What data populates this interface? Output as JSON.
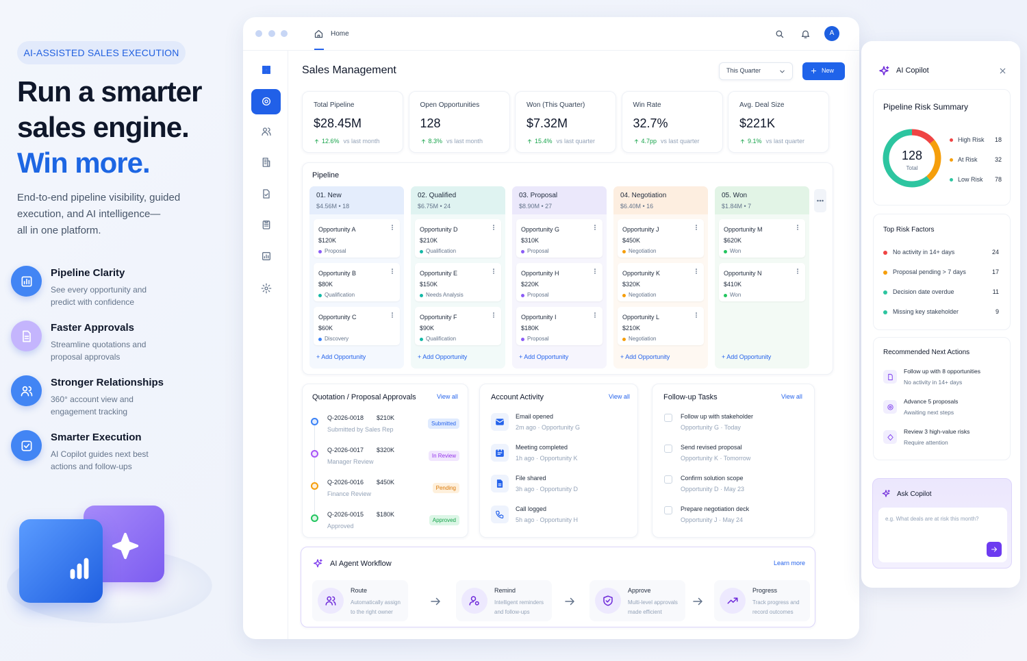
{
  "hero": {
    "badge": "AI-ASSISTED SALES EXECUTION",
    "headline": [
      "Run a smarter",
      "sales engine.",
      "Win more."
    ],
    "description": [
      "End-to-end pipeline visibility, guided",
      "execution, and AI intelligence—",
      "all in one platform."
    ],
    "features": [
      {
        "title": "Pipeline Clarity",
        "text": [
          "See every opportunity and",
          "predict with confidence"
        ]
      },
      {
        "title": "Faster Approvals",
        "text": [
          "Streamline quotations and",
          "proposal approvals"
        ]
      },
      {
        "title": "Stronger Relationships",
        "text": [
          "360° account view and",
          "engagement tracking"
        ]
      },
      {
        "title": "Smarter Execution",
        "text": [
          "AI Copilot guides next best",
          "actions and follow-ups"
        ]
      }
    ]
  },
  "app": {
    "breadcrumb": "Home",
    "avatar": "A",
    "title": "Sales Management",
    "period": "This Quarter",
    "new_button": "New",
    "kpis": [
      {
        "label": "Total Pipeline",
        "value": "$28.45M",
        "change": "12.6%",
        "note": "vs last month"
      },
      {
        "label": "Open Opportunities",
        "value": "128",
        "change": "8.3%",
        "note": "vs last month"
      },
      {
        "label": "Won (This Quarter)",
        "value": "$7.32M",
        "change": "15.4%",
        "note": "vs last quarter"
      },
      {
        "label": "Win Rate",
        "value": "32.7%",
        "change": "4.7pp",
        "note": "vs last quarter"
      },
      {
        "label": "Avg. Deal Size",
        "value": "$221K",
        "change": "9.1%",
        "note": "vs last quarter"
      }
    ],
    "pipeline": {
      "title": "Pipeline",
      "add_label": "+ Add Opportunity",
      "stages": [
        {
          "name": "01. New",
          "summary": "$4.56M • 18",
          "cards": [
            {
              "name": "Opportunity A",
              "amount": "$120K",
              "status": "Proposal"
            },
            {
              "name": "Opportunity B",
              "amount": "$80K",
              "status": "Qualification"
            },
            {
              "name": "Opportunity C",
              "amount": "$60K",
              "status": "Discovery"
            }
          ]
        },
        {
          "name": "02. Qualified",
          "summary": "$6.75M • 24",
          "cards": [
            {
              "name": "Opportunity D",
              "amount": "$210K",
              "status": "Qualification"
            },
            {
              "name": "Opportunity E",
              "amount": "$150K",
              "status": "Needs Analysis"
            },
            {
              "name": "Opportunity F",
              "amount": "$90K",
              "status": "Qualification"
            }
          ]
        },
        {
          "name": "03. Proposal",
          "summary": "$8.90M • 27",
          "cards": [
            {
              "name": "Opportunity G",
              "amount": "$310K",
              "status": "Proposal"
            },
            {
              "name": "Opportunity H",
              "amount": "$220K",
              "status": "Proposal"
            },
            {
              "name": "Opportunity I",
              "amount": "$180K",
              "status": "Proposal"
            }
          ]
        },
        {
          "name": "04. Negotiation",
          "summary": "$6.40M • 16",
          "cards": [
            {
              "name": "Opportunity J",
              "amount": "$450K",
              "status": "Negotiation"
            },
            {
              "name": "Opportunity K",
              "amount": "$320K",
              "status": "Negotiation"
            },
            {
              "name": "Opportunity L",
              "amount": "$210K",
              "status": "Negotiation"
            }
          ]
        },
        {
          "name": "05. Won",
          "summary": "$1.84M • 7",
          "cards": [
            {
              "name": "Opportunity M",
              "amount": "$620K",
              "status": "Won"
            },
            {
              "name": "Opportunity N",
              "amount": "$410K",
              "status": "Won"
            }
          ]
        }
      ]
    },
    "approvals": {
      "title": "Quotation / Proposal Approvals",
      "link": "View all",
      "items": [
        {
          "id": "Q-2026-0018",
          "amount": "$210K",
          "by": "Submitted by Sales Rep",
          "status": "Submitted"
        },
        {
          "id": "Q-2026-0017",
          "amount": "$320K",
          "by": "Manager Review",
          "status": "In Review"
        },
        {
          "id": "Q-2026-0016",
          "amount": "$450K",
          "by": "Finance Review",
          "status": "Pending"
        },
        {
          "id": "Q-2026-0015",
          "amount": "$180K",
          "by": "Approved",
          "status": "Approved"
        }
      ]
    },
    "activity": {
      "title": "Account Activity",
      "link": "View all",
      "items": [
        {
          "title": "Email opened",
          "meta": "2m ago · Opportunity G"
        },
        {
          "title": "Meeting completed",
          "meta": "1h ago · Opportunity K"
        },
        {
          "title": "File shared",
          "meta": "3h ago · Opportunity D"
        },
        {
          "title": "Call logged",
          "meta": "5h ago · Opportunity H"
        }
      ]
    },
    "tasks": {
      "title": "Follow-up Tasks",
      "link": "View all",
      "items": [
        {
          "title": "Follow up with stakeholder",
          "meta": "Opportunity G · Today"
        },
        {
          "title": "Send revised proposal",
          "meta": "Opportunity K · Tomorrow"
        },
        {
          "title": "Confirm solution scope",
          "meta": "Opportunity D · May 23"
        },
        {
          "title": "Prepare negotiation deck",
          "meta": "Opportunity J · May 24"
        }
      ]
    },
    "workflow": {
      "title": "AI Agent Workflow",
      "link": "Learn more",
      "steps": [
        {
          "name": "Route",
          "text": [
            "Automatically assign",
            "to the right owner"
          ]
        },
        {
          "name": "Remind",
          "text": [
            "Intelligent reminders",
            "and follow-ups"
          ]
        },
        {
          "name": "Approve",
          "text": [
            "Multi-level approvals",
            "made efficient"
          ]
        },
        {
          "name": "Progress",
          "text": [
            "Track progress and",
            "record outcomes"
          ]
        }
      ]
    }
  },
  "copilot": {
    "title": "AI Copilot",
    "risk_summary": {
      "title": "Pipeline Risk Summary",
      "total": 128,
      "total_label": "Total",
      "items": [
        {
          "label": "High Risk",
          "value": 18
        },
        {
          "label": "At Risk",
          "value": 32
        },
        {
          "label": "Low Risk",
          "value": 78
        }
      ]
    },
    "top_risk_factors": {
      "title": "Top Risk Factors",
      "items": [
        {
          "label": "No activity in 14+ days",
          "value": 24
        },
        {
          "label": "Proposal pending > 7 days",
          "value": 17
        },
        {
          "label": "Decision date overdue",
          "value": 11
        },
        {
          "label": "Missing key stakeholder",
          "value": 9
        }
      ]
    },
    "next_actions": {
      "title": "Recommended Next Actions",
      "items": [
        {
          "title": "Follow up with 8 opportunities",
          "text": "No activity in 14+ days"
        },
        {
          "title": "Advance 5 proposals",
          "text": "Awaiting next steps"
        },
        {
          "title": "Review 3 high-value risks",
          "text": "Require attention"
        }
      ]
    },
    "ask": {
      "title": "Ask Copilot",
      "placeholder": "e.g. What deals are at risk this month?"
    }
  }
}
